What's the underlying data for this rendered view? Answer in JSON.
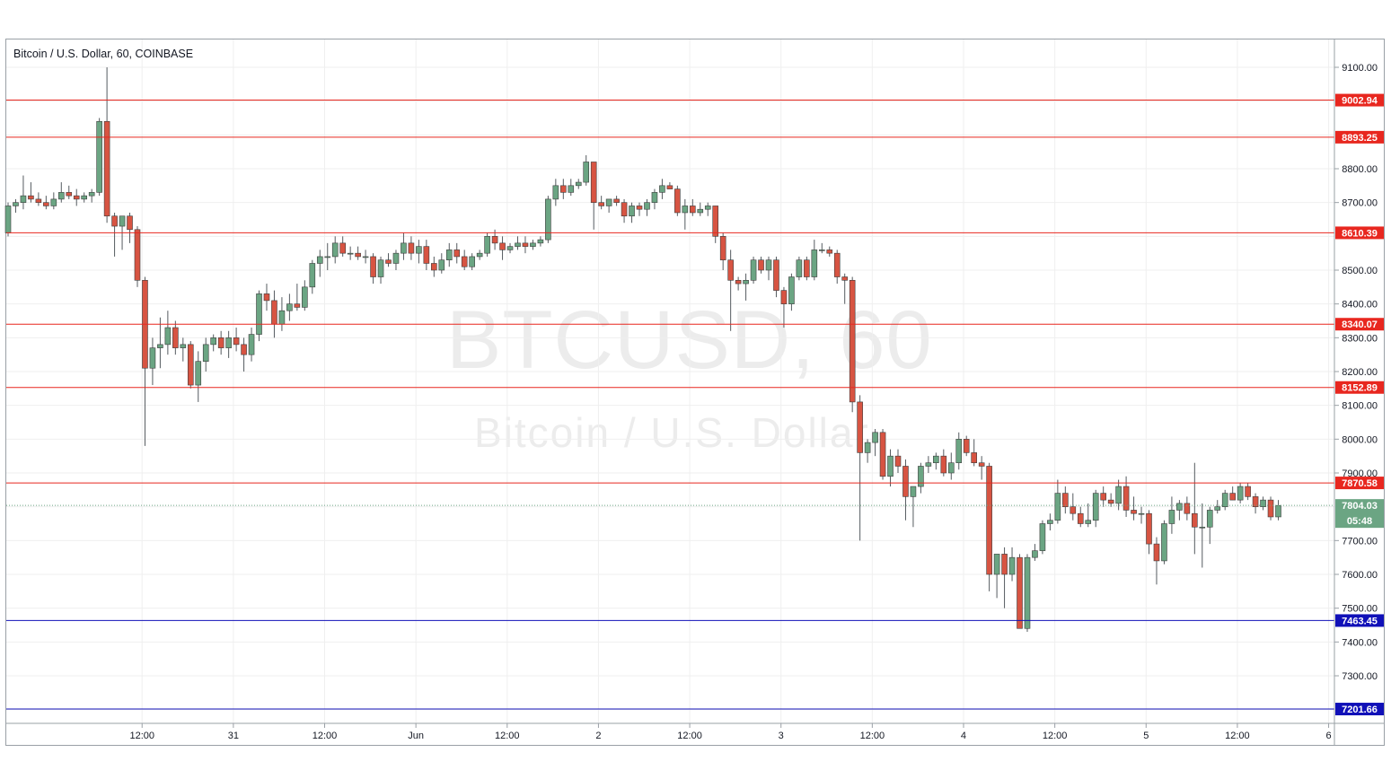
{
  "title": "Bitcoin / U.S. Dollar, 60, COINBASE",
  "watermark": {
    "symbol": "BTCUSD, 60",
    "name": "Bitcoin / U.S. Dollar"
  },
  "colors": {
    "up": "#6ba583",
    "down": "#d75442",
    "resistance": "#e8271f",
    "support": "#1010b8",
    "last": "#6ba583",
    "grid": "#efefef"
  },
  "chart_data": {
    "type": "candlestick",
    "y_range": [
      7120,
      9200
    ],
    "x_range": [
      0,
      175
    ],
    "y_ticks": [
      {
        "v": 9100,
        "label": "9100.00"
      },
      {
        "v": 8800,
        "label": "8800.00"
      },
      {
        "v": 8700,
        "label": "8700.00"
      },
      {
        "v": 8500,
        "label": "8500.00"
      },
      {
        "v": 8400,
        "label": "8400.00"
      },
      {
        "v": 8300,
        "label": "8300.00"
      },
      {
        "v": 8200,
        "label": "8200.00"
      },
      {
        "v": 8100,
        "label": "8100.00"
      },
      {
        "v": 8000,
        "label": "8000.00"
      },
      {
        "v": 7900,
        "label": "7900.00"
      },
      {
        "v": 7700,
        "label": "7700.00"
      },
      {
        "v": 7600,
        "label": "7600.00"
      },
      {
        "v": 7500,
        "label": "7500.00"
      },
      {
        "v": 7400,
        "label": "7400.00"
      },
      {
        "v": 7300,
        "label": "7300.00"
      }
    ],
    "grid_y": [
      9100,
      9000,
      8900,
      8800,
      8700,
      8600,
      8500,
      8400,
      8300,
      8200,
      8100,
      8000,
      7900,
      7800,
      7700,
      7600,
      7500,
      7400,
      7300,
      7200
    ],
    "x_ticks": [
      {
        "i": 9,
        "label": "12:00"
      },
      {
        "i": 21,
        "label": "31"
      },
      {
        "i": 33,
        "label": "12:00"
      },
      {
        "i": 45,
        "label": "Jun"
      },
      {
        "i": 57,
        "label": "12:00"
      },
      {
        "i": 69,
        "label": "2"
      },
      {
        "i": 81,
        "label": "12:00"
      },
      {
        "i": 93,
        "label": "3"
      },
      {
        "i": 105,
        "label": "12:00"
      },
      {
        "i": 117,
        "label": "4"
      },
      {
        "i": 129,
        "label": "12:00"
      },
      {
        "i": 141,
        "label": "5"
      },
      {
        "i": 153,
        "label": "12:00"
      },
      {
        "i": 165,
        "label": "6"
      }
    ],
    "levels": [
      {
        "value": 9002.94,
        "label": "9002.94",
        "kind": "resistance"
      },
      {
        "value": 8893.25,
        "label": "8893.25",
        "kind": "resistance"
      },
      {
        "value": 8610.39,
        "label": "8610.39",
        "kind": "resistance"
      },
      {
        "value": 8340.07,
        "label": "8340.07",
        "kind": "resistance"
      },
      {
        "value": 8152.89,
        "label": "8152.89",
        "kind": "resistance"
      },
      {
        "value": 7870.58,
        "label": "7870.58",
        "kind": "resistance"
      },
      {
        "value": 7463.45,
        "label": "7463.45",
        "kind": "support"
      },
      {
        "value": 7201.66,
        "label": "7201.66",
        "kind": "support"
      }
    ],
    "last_price": {
      "value": 7804.03,
      "label": "7804.03",
      "countdown": "05:48"
    },
    "series": [
      {
        "o": 8610,
        "h": 8700,
        "l": 8600,
        "c": 8690
      },
      {
        "o": 8690,
        "h": 8710,
        "l": 8670,
        "c": 8700
      },
      {
        "o": 8700,
        "h": 8780,
        "l": 8680,
        "c": 8720
      },
      {
        "o": 8720,
        "h": 8760,
        "l": 8700,
        "c": 8710
      },
      {
        "o": 8710,
        "h": 8730,
        "l": 8690,
        "c": 8700
      },
      {
        "o": 8700,
        "h": 8720,
        "l": 8680,
        "c": 8690
      },
      {
        "o": 8690,
        "h": 8730,
        "l": 8680,
        "c": 8710
      },
      {
        "o": 8710,
        "h": 8760,
        "l": 8700,
        "c": 8730
      },
      {
        "o": 8730,
        "h": 8750,
        "l": 8710,
        "c": 8720
      },
      {
        "o": 8720,
        "h": 8740,
        "l": 8690,
        "c": 8710
      },
      {
        "o": 8710,
        "h": 8730,
        "l": 8700,
        "c": 8720
      },
      {
        "o": 8720,
        "h": 8740,
        "l": 8700,
        "c": 8730
      },
      {
        "o": 8730,
        "h": 8950,
        "l": 8720,
        "c": 8940
      },
      {
        "o": 8940,
        "h": 9100,
        "l": 8640,
        "c": 8660
      },
      {
        "o": 8660,
        "h": 8670,
        "l": 8540,
        "c": 8630
      },
      {
        "o": 8630,
        "h": 8660,
        "l": 8560,
        "c": 8660
      },
      {
        "o": 8660,
        "h": 8670,
        "l": 8580,
        "c": 8620
      },
      {
        "o": 8620,
        "h": 8630,
        "l": 8450,
        "c": 8470
      },
      {
        "o": 8470,
        "h": 8480,
        "l": 7980,
        "c": 8210
      },
      {
        "o": 8210,
        "h": 8300,
        "l": 8160,
        "c": 8270
      },
      {
        "o": 8270,
        "h": 8360,
        "l": 8210,
        "c": 8280
      },
      {
        "o": 8280,
        "h": 8380,
        "l": 8250,
        "c": 8330
      },
      {
        "o": 8330,
        "h": 8350,
        "l": 8250,
        "c": 8270
      },
      {
        "o": 8270,
        "h": 8300,
        "l": 8230,
        "c": 8280
      },
      {
        "o": 8280,
        "h": 8290,
        "l": 8150,
        "c": 8160
      },
      {
        "o": 8160,
        "h": 8260,
        "l": 8110,
        "c": 8230
      },
      {
        "o": 8230,
        "h": 8300,
        "l": 8200,
        "c": 8280
      },
      {
        "o": 8280,
        "h": 8310,
        "l": 8260,
        "c": 8300
      },
      {
        "o": 8300,
        "h": 8320,
        "l": 8250,
        "c": 8270
      },
      {
        "o": 8270,
        "h": 8320,
        "l": 8240,
        "c": 8300
      },
      {
        "o": 8300,
        "h": 8330,
        "l": 8260,
        "c": 8280
      },
      {
        "o": 8280,
        "h": 8300,
        "l": 8200,
        "c": 8250
      },
      {
        "o": 8250,
        "h": 8330,
        "l": 8230,
        "c": 8310
      },
      {
        "o": 8310,
        "h": 8440,
        "l": 8290,
        "c": 8430
      },
      {
        "o": 8430,
        "h": 8460,
        "l": 8380,
        "c": 8410
      },
      {
        "o": 8410,
        "h": 8440,
        "l": 8300,
        "c": 8340
      },
      {
        "o": 8340,
        "h": 8420,
        "l": 8320,
        "c": 8380
      },
      {
        "o": 8380,
        "h": 8430,
        "l": 8350,
        "c": 8400
      },
      {
        "o": 8400,
        "h": 8460,
        "l": 8380,
        "c": 8390
      },
      {
        "o": 8390,
        "h": 8470,
        "l": 8380,
        "c": 8450
      },
      {
        "o": 8450,
        "h": 8530,
        "l": 8430,
        "c": 8520
      },
      {
        "o": 8520,
        "h": 8560,
        "l": 8480,
        "c": 8540
      },
      {
        "o": 8540,
        "h": 8580,
        "l": 8500,
        "c": 8540
      },
      {
        "o": 8540,
        "h": 8600,
        "l": 8520,
        "c": 8580
      },
      {
        "o": 8580,
        "h": 8600,
        "l": 8540,
        "c": 8550
      },
      {
        "o": 8550,
        "h": 8570,
        "l": 8530,
        "c": 8550
      },
      {
        "o": 8550,
        "h": 8570,
        "l": 8530,
        "c": 8540
      },
      {
        "o": 8540,
        "h": 8560,
        "l": 8520,
        "c": 8540
      },
      {
        "o": 8540,
        "h": 8550,
        "l": 8460,
        "c": 8480
      },
      {
        "o": 8480,
        "h": 8540,
        "l": 8460,
        "c": 8530
      },
      {
        "o": 8530,
        "h": 8550,
        "l": 8510,
        "c": 8520
      },
      {
        "o": 8520,
        "h": 8560,
        "l": 8500,
        "c": 8550
      },
      {
        "o": 8550,
        "h": 8610,
        "l": 8530,
        "c": 8580
      },
      {
        "o": 8580,
        "h": 8600,
        "l": 8530,
        "c": 8550
      },
      {
        "o": 8550,
        "h": 8590,
        "l": 8520,
        "c": 8570
      },
      {
        "o": 8570,
        "h": 8590,
        "l": 8500,
        "c": 8520
      },
      {
        "o": 8520,
        "h": 8540,
        "l": 8480,
        "c": 8500
      },
      {
        "o": 8500,
        "h": 8550,
        "l": 8490,
        "c": 8530
      },
      {
        "o": 8530,
        "h": 8580,
        "l": 8510,
        "c": 8560
      },
      {
        "o": 8560,
        "h": 8580,
        "l": 8520,
        "c": 8540
      },
      {
        "o": 8540,
        "h": 8560,
        "l": 8500,
        "c": 8510
      },
      {
        "o": 8510,
        "h": 8550,
        "l": 8500,
        "c": 8540
      },
      {
        "o": 8540,
        "h": 8560,
        "l": 8530,
        "c": 8550
      },
      {
        "o": 8550,
        "h": 8610,
        "l": 8540,
        "c": 8600
      },
      {
        "o": 8600,
        "h": 8620,
        "l": 8560,
        "c": 8580
      },
      {
        "o": 8580,
        "h": 8600,
        "l": 8530,
        "c": 8560
      },
      {
        "o": 8560,
        "h": 8580,
        "l": 8550,
        "c": 8570
      },
      {
        "o": 8570,
        "h": 8600,
        "l": 8560,
        "c": 8580
      },
      {
        "o": 8580,
        "h": 8600,
        "l": 8550,
        "c": 8570
      },
      {
        "o": 8570,
        "h": 8590,
        "l": 8560,
        "c": 8580
      },
      {
        "o": 8580,
        "h": 8600,
        "l": 8570,
        "c": 8590
      },
      {
        "o": 8590,
        "h": 8720,
        "l": 8580,
        "c": 8710
      },
      {
        "o": 8710,
        "h": 8770,
        "l": 8690,
        "c": 8750
      },
      {
        "o": 8750,
        "h": 8770,
        "l": 8710,
        "c": 8730
      },
      {
        "o": 8730,
        "h": 8770,
        "l": 8720,
        "c": 8750
      },
      {
        "o": 8750,
        "h": 8770,
        "l": 8740,
        "c": 8760
      },
      {
        "o": 8760,
        "h": 8840,
        "l": 8750,
        "c": 8820
      },
      {
        "o": 8820,
        "h": 8820,
        "l": 8620,
        "c": 8700
      },
      {
        "o": 8700,
        "h": 8720,
        "l": 8680,
        "c": 8690
      },
      {
        "o": 8690,
        "h": 8710,
        "l": 8670,
        "c": 8710
      },
      {
        "o": 8710,
        "h": 8720,
        "l": 8690,
        "c": 8700
      },
      {
        "o": 8700,
        "h": 8710,
        "l": 8640,
        "c": 8660
      },
      {
        "o": 8660,
        "h": 8700,
        "l": 8640,
        "c": 8690
      },
      {
        "o": 8690,
        "h": 8700,
        "l": 8660,
        "c": 8680
      },
      {
        "o": 8680,
        "h": 8710,
        "l": 8660,
        "c": 8700
      },
      {
        "o": 8700,
        "h": 8740,
        "l": 8680,
        "c": 8730
      },
      {
        "o": 8730,
        "h": 8770,
        "l": 8710,
        "c": 8750
      },
      {
        "o": 8750,
        "h": 8760,
        "l": 8740,
        "c": 8740
      },
      {
        "o": 8740,
        "h": 8750,
        "l": 8660,
        "c": 8670
      },
      {
        "o": 8670,
        "h": 8710,
        "l": 8620,
        "c": 8690
      },
      {
        "o": 8690,
        "h": 8710,
        "l": 8660,
        "c": 8670
      },
      {
        "o": 8670,
        "h": 8700,
        "l": 8660,
        "c": 8680
      },
      {
        "o": 8680,
        "h": 8700,
        "l": 8660,
        "c": 8690
      },
      {
        "o": 8690,
        "h": 8690,
        "l": 8580,
        "c": 8600
      },
      {
        "o": 8600,
        "h": 8610,
        "l": 8500,
        "c": 8530
      },
      {
        "o": 8530,
        "h": 8560,
        "l": 8320,
        "c": 8470
      },
      {
        "o": 8470,
        "h": 8480,
        "l": 8440,
        "c": 8460
      },
      {
        "o": 8460,
        "h": 8490,
        "l": 8410,
        "c": 8470
      },
      {
        "o": 8470,
        "h": 8540,
        "l": 8460,
        "c": 8530
      },
      {
        "o": 8530,
        "h": 8540,
        "l": 8490,
        "c": 8500
      },
      {
        "o": 8500,
        "h": 8540,
        "l": 8470,
        "c": 8530
      },
      {
        "o": 8530,
        "h": 8540,
        "l": 8420,
        "c": 8440
      },
      {
        "o": 8440,
        "h": 8450,
        "l": 8330,
        "c": 8400
      },
      {
        "o": 8400,
        "h": 8490,
        "l": 8380,
        "c": 8480
      },
      {
        "o": 8480,
        "h": 8540,
        "l": 8470,
        "c": 8530
      },
      {
        "o": 8530,
        "h": 8540,
        "l": 8470,
        "c": 8480
      },
      {
        "o": 8480,
        "h": 8590,
        "l": 8470,
        "c": 8560
      },
      {
        "o": 8560,
        "h": 8580,
        "l": 8550,
        "c": 8560
      },
      {
        "o": 8560,
        "h": 8570,
        "l": 8540,
        "c": 8550
      },
      {
        "o": 8550,
        "h": 8560,
        "l": 8460,
        "c": 8480
      },
      {
        "o": 8480,
        "h": 8490,
        "l": 8400,
        "c": 8470
      },
      {
        "o": 8470,
        "h": 8480,
        "l": 8080,
        "c": 8110
      },
      {
        "o": 8110,
        "h": 8130,
        "l": 7700,
        "c": 7960
      },
      {
        "o": 7960,
        "h": 8000,
        "l": 7930,
        "c": 7990
      },
      {
        "o": 7990,
        "h": 8030,
        "l": 7950,
        "c": 8020
      },
      {
        "o": 8020,
        "h": 8030,
        "l": 7880,
        "c": 7890
      },
      {
        "o": 7890,
        "h": 7970,
        "l": 7860,
        "c": 7950
      },
      {
        "o": 7950,
        "h": 7970,
        "l": 7900,
        "c": 7920
      },
      {
        "o": 7920,
        "h": 7940,
        "l": 7760,
        "c": 7830
      },
      {
        "o": 7830,
        "h": 7860,
        "l": 7740,
        "c": 7860
      },
      {
        "o": 7860,
        "h": 7930,
        "l": 7840,
        "c": 7920
      },
      {
        "o": 7920,
        "h": 7950,
        "l": 7900,
        "c": 7930
      },
      {
        "o": 7930,
        "h": 7960,
        "l": 7910,
        "c": 7950
      },
      {
        "o": 7950,
        "h": 7970,
        "l": 7890,
        "c": 7900
      },
      {
        "o": 7900,
        "h": 7960,
        "l": 7880,
        "c": 7930
      },
      {
        "o": 7930,
        "h": 8020,
        "l": 7910,
        "c": 8000
      },
      {
        "o": 8000,
        "h": 8010,
        "l": 7950,
        "c": 7960
      },
      {
        "o": 7960,
        "h": 8000,
        "l": 7920,
        "c": 7930
      },
      {
        "o": 7930,
        "h": 7950,
        "l": 7880,
        "c": 7920
      },
      {
        "o": 7920,
        "h": 7930,
        "l": 7550,
        "c": 7600
      },
      {
        "o": 7600,
        "h": 7660,
        "l": 7530,
        "c": 7660
      },
      {
        "o": 7660,
        "h": 7680,
        "l": 7500,
        "c": 7600
      },
      {
        "o": 7600,
        "h": 7680,
        "l": 7580,
        "c": 7650
      },
      {
        "o": 7650,
        "h": 7660,
        "l": 7440,
        "c": 7440
      },
      {
        "o": 7440,
        "h": 7660,
        "l": 7430,
        "c": 7650
      },
      {
        "o": 7650,
        "h": 7690,
        "l": 7640,
        "c": 7670
      },
      {
        "o": 7670,
        "h": 7760,
        "l": 7660,
        "c": 7750
      },
      {
        "o": 7750,
        "h": 7780,
        "l": 7730,
        "c": 7760
      },
      {
        "o": 7760,
        "h": 7880,
        "l": 7750,
        "c": 7840
      },
      {
        "o": 7840,
        "h": 7860,
        "l": 7780,
        "c": 7800
      },
      {
        "o": 7800,
        "h": 7840,
        "l": 7760,
        "c": 7780
      },
      {
        "o": 7780,
        "h": 7800,
        "l": 7740,
        "c": 7750
      },
      {
        "o": 7750,
        "h": 7810,
        "l": 7740,
        "c": 7760
      },
      {
        "o": 7760,
        "h": 7850,
        "l": 7740,
        "c": 7840
      },
      {
        "o": 7840,
        "h": 7860,
        "l": 7800,
        "c": 7820
      },
      {
        "o": 7820,
        "h": 7840,
        "l": 7800,
        "c": 7810
      },
      {
        "o": 7810,
        "h": 7880,
        "l": 7790,
        "c": 7860
      },
      {
        "o": 7860,
        "h": 7890,
        "l": 7770,
        "c": 7790
      },
      {
        "o": 7790,
        "h": 7830,
        "l": 7760,
        "c": 7780
      },
      {
        "o": 7780,
        "h": 7800,
        "l": 7750,
        "c": 7780
      },
      {
        "o": 7780,
        "h": 7790,
        "l": 7660,
        "c": 7690
      },
      {
        "o": 7690,
        "h": 7710,
        "l": 7570,
        "c": 7640
      },
      {
        "o": 7640,
        "h": 7760,
        "l": 7630,
        "c": 7750
      },
      {
        "o": 7750,
        "h": 7830,
        "l": 7720,
        "c": 7790
      },
      {
        "o": 7790,
        "h": 7820,
        "l": 7760,
        "c": 7810
      },
      {
        "o": 7810,
        "h": 7830,
        "l": 7760,
        "c": 7780
      },
      {
        "o": 7780,
        "h": 7930,
        "l": 7660,
        "c": 7740
      },
      {
        "o": 7740,
        "h": 7810,
        "l": 7620,
        "c": 7740
      },
      {
        "o": 7740,
        "h": 7800,
        "l": 7690,
        "c": 7790
      },
      {
        "o": 7790,
        "h": 7820,
        "l": 7780,
        "c": 7800
      },
      {
        "o": 7800,
        "h": 7850,
        "l": 7790,
        "c": 7840
      },
      {
        "o": 7840,
        "h": 7860,
        "l": 7820,
        "c": 7820
      },
      {
        "o": 7820,
        "h": 7870,
        "l": 7810,
        "c": 7860
      },
      {
        "o": 7860,
        "h": 7870,
        "l": 7820,
        "c": 7830
      },
      {
        "o": 7830,
        "h": 7840,
        "l": 7780,
        "c": 7800
      },
      {
        "o": 7800,
        "h": 7830,
        "l": 7790,
        "c": 7820
      },
      {
        "o": 7820,
        "h": 7830,
        "l": 7760,
        "c": 7770
      },
      {
        "o": 7770,
        "h": 7820,
        "l": 7760,
        "c": 7804
      }
    ]
  }
}
